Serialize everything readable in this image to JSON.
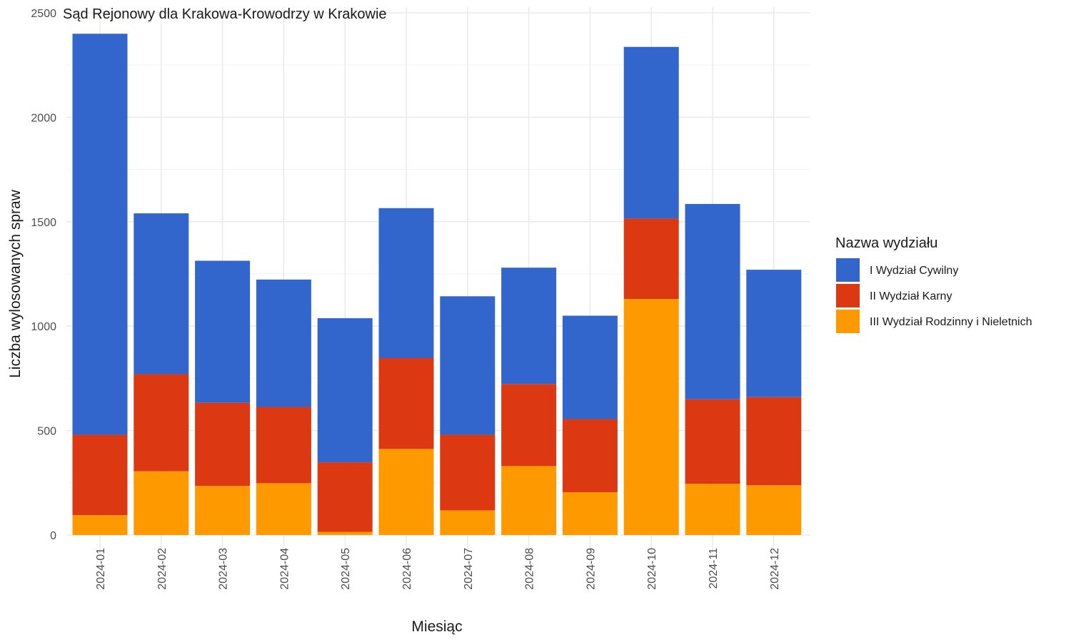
{
  "chart_data": {
    "type": "bar",
    "stacked": true,
    "title": "Sąd Rejonowy dla Krakowa-Krowodrzy w Krakowie",
    "xlabel": "Miesiąc",
    "ylabel": "Liczba wylosowanych spraw",
    "ylim": [
      0,
      2500
    ],
    "yticks": [
      0,
      500,
      1000,
      1500,
      2000,
      2500
    ],
    "grid": true,
    "legend_position": "right",
    "legend_title": "Nazwa wydziału",
    "categories": [
      "2024-01",
      "2024-02",
      "2024-03",
      "2024-04",
      "2024-05",
      "2024-06",
      "2024-07",
      "2024-08",
      "2024-09",
      "2024-10",
      "2024-11",
      "2024-12"
    ],
    "series": [
      {
        "name": "III Wydział Rodzinny i Nieletnich",
        "color": "#ff9900",
        "values": [
          95,
          305,
          235,
          248,
          15,
          412,
          118,
          330,
          205,
          1130,
          245,
          238
        ]
      },
      {
        "name": "II Wydział Karny",
        "color": "#dc3912",
        "values": [
          385,
          465,
          398,
          365,
          333,
          435,
          362,
          393,
          350,
          385,
          405,
          422
        ]
      },
      {
        "name": "I Wydział Cywilny",
        "color": "#3366cc",
        "values": [
          1920,
          770,
          680,
          610,
          690,
          718,
          663,
          557,
          495,
          822,
          935,
          610
        ]
      }
    ],
    "legend_order": [
      "I Wydział Cywilny",
      "II Wydział Karny",
      "III Wydział Rodzinny i Nieletnich"
    ]
  }
}
